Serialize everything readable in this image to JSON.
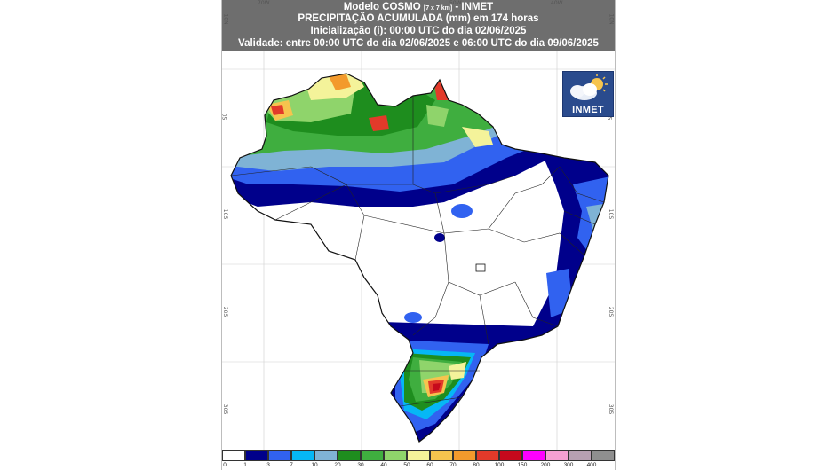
{
  "header": {
    "line1_main": "Modelo COSMO",
    "line1_small": "[7 x 7 km]",
    "line1_suffix": "- INMET",
    "line2": "PRECIPITAÇÃO ACUMULADA (mm) em 174 horas",
    "line3": "Inicialização (i): 00:00 UTC do dia 02/06/2025",
    "line4": "Validade: entre 00:00 UTC do dia 02/06/2025 e 06:00 UTC do dia 09/06/2025"
  },
  "logo": {
    "text": "INMET",
    "icon": "cloud-sun-icon"
  },
  "coords": {
    "top": [
      "70W",
      "50W",
      "40W"
    ],
    "left": [
      "10N",
      "0S",
      "10S",
      "20S",
      "30S"
    ],
    "right": [
      "10N",
      "0S",
      "10S",
      "20S",
      "30S"
    ]
  },
  "legend": {
    "labels": [
      "0",
      "1",
      "3",
      "7",
      "10",
      "20",
      "30",
      "40",
      "50",
      "60",
      "70",
      "80",
      "100",
      "150",
      "200",
      "300",
      "400"
    ],
    "colors": [
      "#ffffff",
      "#00008b",
      "#3162f0",
      "#06b7f5",
      "#7fb3d5",
      "#1e8d1e",
      "#3fae3f",
      "#8fd46b",
      "#f4f39a",
      "#f6c44e",
      "#f39a2c",
      "#e23a2a",
      "#c6091c",
      "#ff00ff",
      "#f5a0d2",
      "#b7a0b2",
      "#8f8f8f"
    ]
  }
}
